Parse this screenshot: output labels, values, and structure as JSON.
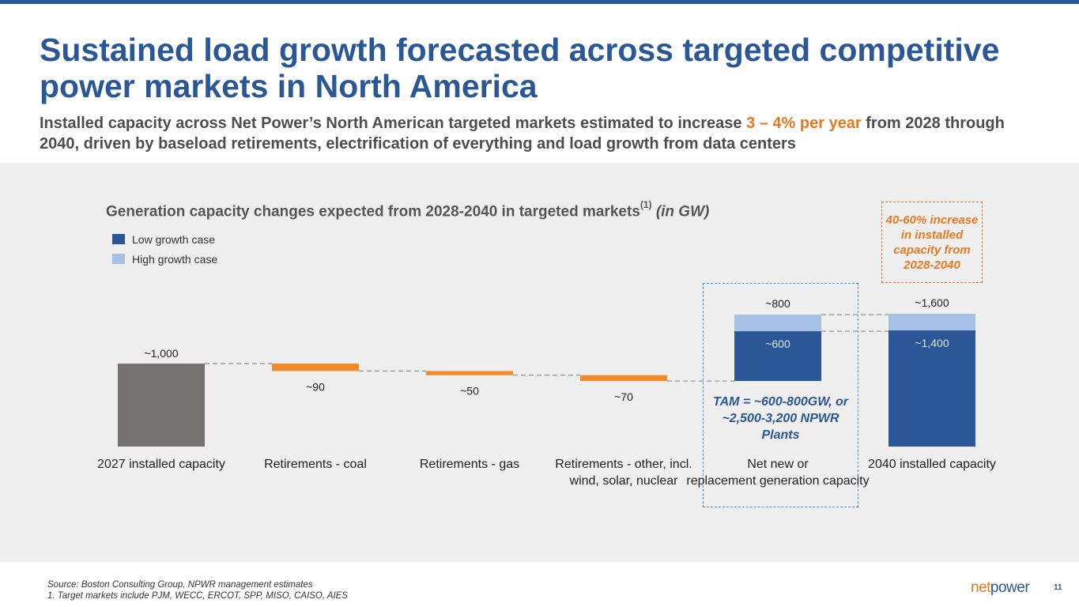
{
  "header": {
    "title": "Sustained load growth forecasted across targeted competitive power markets in North America",
    "subtitle_pre": "Installed capacity across Net Power’s North American targeted markets estimated to increase ",
    "subtitle_highlight": "3 – 4% per year",
    "subtitle_post": " from 2028 through 2040, driven by baseload retirements, electrification of everything and load growth from data centers"
  },
  "chart_header": {
    "title_main": "Generation capacity changes expected from 2028-2040 in targeted markets",
    "title_sup": "(1)",
    "title_unit": "(in GW)"
  },
  "legend": [
    {
      "label": "Low growth case",
      "color": "#2b5797"
    },
    {
      "label": "High growth case",
      "color": "#a6c1e6"
    }
  ],
  "callout": {
    "text": "40-60% increase in installed capacity from 2028-2040"
  },
  "tam_note": {
    "text": "TAM = ~600-800GW, or ~2,500-3,200 NPWR Plants"
  },
  "chart_data": {
    "type": "waterfall",
    "unit": "GW",
    "categories": [
      "2027 installed capacity",
      "Retirements - coal",
      "Retirements - gas",
      "Retirements - other, incl. wind, solar, nuclear",
      "Net new or replacement generation capacity",
      "2040 installed capacity"
    ],
    "steps": [
      {
        "kind": "total",
        "base": 0,
        "low": 1000,
        "high": 1000,
        "label": "~1,000"
      },
      {
        "kind": "decrease",
        "value": 90,
        "label": "~90"
      },
      {
        "kind": "decrease",
        "value": 50,
        "label": "~50"
      },
      {
        "kind": "decrease",
        "value": 70,
        "label": "~70"
      },
      {
        "kind": "increase",
        "low": 600,
        "high": 800,
        "label_low": "~600",
        "label_high": "~800"
      },
      {
        "kind": "total",
        "base": 0,
        "low": 1400,
        "high": 1600,
        "label_low": "~1,400",
        "label_high": "~1,600"
      }
    ],
    "colors": {
      "total_2027": "#767171",
      "decrease": "#f08a2e",
      "low": "#2b5797",
      "high": "#a6c1e6"
    }
  },
  "footer": {
    "source": "Source: Boston Consulting Group, NPWR management estimates",
    "note": "1. Target markets include PJM, WECC, ERCOT, SPP, MISO, CAISO, AIES",
    "logo_net": "net",
    "logo_power": "power",
    "page_number": "11"
  }
}
